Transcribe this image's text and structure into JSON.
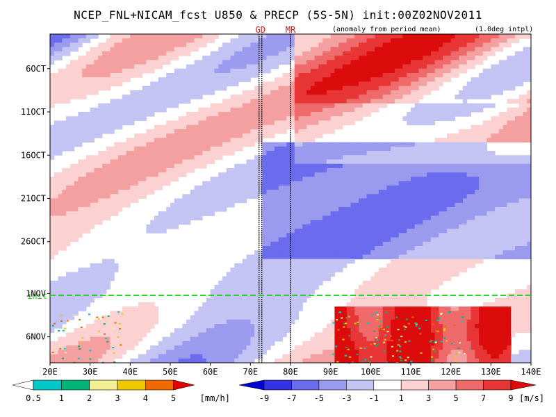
{
  "title": "NCEP_FNL+NICAM_fcst U850 & PRECP (5S-5N) init:00Z02NOV2011",
  "subtitle": "(anomaly from period mean)",
  "note": "(1.0deg intpl)",
  "colors": {
    "init_line": "#22cc22",
    "marker_text": "#e01010",
    "u_neg": [
      "#0000d0",
      "#3333e6",
      "#6b6bee",
      "#9a9aee",
      "#c4c4f4",
      "#ffffff"
    ],
    "u_pos": [
      "#ffffff",
      "#fbd1d1",
      "#f5a0a0",
      "#ef6a6a",
      "#e83636",
      "#dd0c0c"
    ],
    "precip": [
      "#ffffff",
      "#00c8c8",
      "#00b478",
      "#f0f090",
      "#f0c800",
      "#f06a00",
      "#e00000"
    ]
  },
  "chart_data": {
    "type": "heatmap",
    "x_axis": {
      "range": [
        20,
        140
      ],
      "ticks": [
        20,
        30,
        40,
        50,
        60,
        70,
        80,
        90,
        100,
        110,
        120,
        130,
        140
      ],
      "tick_labels": [
        "20E",
        "30E",
        "40E",
        "50E",
        "60E",
        "70E",
        "80E",
        "90E",
        "100E",
        "110E",
        "120E",
        "130E",
        "140E"
      ]
    },
    "y_axis": {
      "range": [
        "2011-10-02",
        "2011-11-09"
      ],
      "ticks": [
        "2011-10-06",
        "2011-10-11",
        "2011-10-16",
        "2011-10-21",
        "2011-10-26",
        "2011-11-01",
        "2011-11-06"
      ],
      "tick_labels": [
        "6OCT",
        "11OCT",
        "16OCT",
        "21OCT",
        "26OCT",
        "1NOV",
        "6NOV"
      ],
      "inverted": true
    },
    "markers": [
      {
        "label": "GD",
        "lon": 72.5
      },
      {
        "label": "MR",
        "lon": 80
      }
    ],
    "init": {
      "label": "init",
      "date": "2011-11-02"
    },
    "precip_colorbar": {
      "levels": [
        0.5,
        1,
        2,
        3,
        4,
        5
      ],
      "tick_labels": [
        "0.5",
        "1",
        "2",
        "3",
        "4",
        "5"
      ],
      "unit": "[mm/h]"
    },
    "u850_colorbar": {
      "levels": [
        -9,
        -7,
        -5,
        -3,
        -1,
        1,
        3,
        5,
        7,
        9
      ],
      "tick_labels": [
        "-9",
        "-7",
        "-5",
        "-3",
        "-1",
        "1",
        "3",
        "5",
        "7",
        "9"
      ],
      "unit": "[m/s]"
    }
  }
}
